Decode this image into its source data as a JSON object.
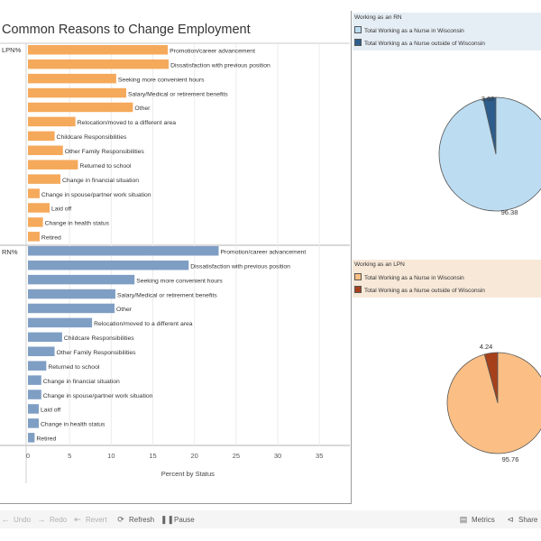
{
  "dashboard": {
    "title": "Common Reasons to Change Employment"
  },
  "chart_data": [
    {
      "type": "bar",
      "orientation": "horizontal",
      "xlabel": "Percent by Status",
      "xlim": [
        0,
        37
      ],
      "xticks": [
        0,
        5,
        10,
        15,
        20,
        25,
        30,
        35
      ],
      "grid": true,
      "panels": [
        {
          "label": "LPN%",
          "color": "#f5a95b",
          "categories": [
            "Promotion/career advancement",
            "Dissatisfaction with previous position",
            "Seeking more convenient hours",
            "Salary/Medical or retirement benefits",
            "Other",
            "Relocation/moved to a different area",
            "Childcare Responsibilities",
            "Other Family Responsibilities",
            "Returned to school",
            "Change in financial situation",
            "Change in spouse/partner work situation",
            "Laid off",
            "Change in health status",
            "Retired"
          ],
          "values": [
            16.8,
            16.9,
            10.6,
            11.8,
            12.6,
            5.7,
            3.2,
            4.2,
            6.0,
            3.9,
            1.4,
            2.6,
            1.8,
            1.4
          ]
        },
        {
          "label": "RN%",
          "color": "#7f9ec4",
          "categories": [
            "Promotion/career advancement",
            "Dissatisfaction with previous position",
            "Seeking more convenient hours",
            "Salary/Medical or retirement benefits",
            "Other",
            "Relocation/moved to a different area",
            "Childcare Responsibilities",
            "Other Family Responsibilities",
            "Returned to school",
            "Change in financial situation",
            "Change in spouse/partner work situation",
            "Laid off",
            "Change in health status",
            "Retired"
          ],
          "values": [
            22.9,
            19.3,
            12.8,
            10.5,
            10.4,
            7.7,
            4.1,
            3.2,
            2.2,
            1.6,
            1.6,
            1.3,
            1.3,
            0.8
          ]
        }
      ]
    },
    {
      "type": "pie",
      "title": "Working as an RN",
      "labels": [
        "Total Working as a Nurse in Wisconsin",
        "Total Working as a Nurse outside of Wisconsin"
      ],
      "values": [
        96.38,
        3.62
      ],
      "value_labels": [
        "96.38",
        "3.62"
      ],
      "colors": [
        "#bcdcf1",
        "#2c5d8c"
      ],
      "legend_bg": "#e6eef5"
    },
    {
      "type": "pie",
      "title": "Working as an LPN",
      "labels": [
        "Total Working as a Nurse in Wisconsin",
        "Total Working as a Nurse outside of Wisconsin"
      ],
      "values": [
        95.76,
        4.24
      ],
      "value_labels": [
        "95.76",
        "4.24"
      ],
      "colors": [
        "#fbbf85",
        "#a6401b"
      ],
      "legend_bg": "#f7e8d8"
    }
  ],
  "toolbar": {
    "undo": "Undo",
    "redo": "Redo",
    "revert": "Revert",
    "refresh": "Refresh",
    "pause": "Pause",
    "metrics": "Metrics",
    "share": "Share"
  }
}
